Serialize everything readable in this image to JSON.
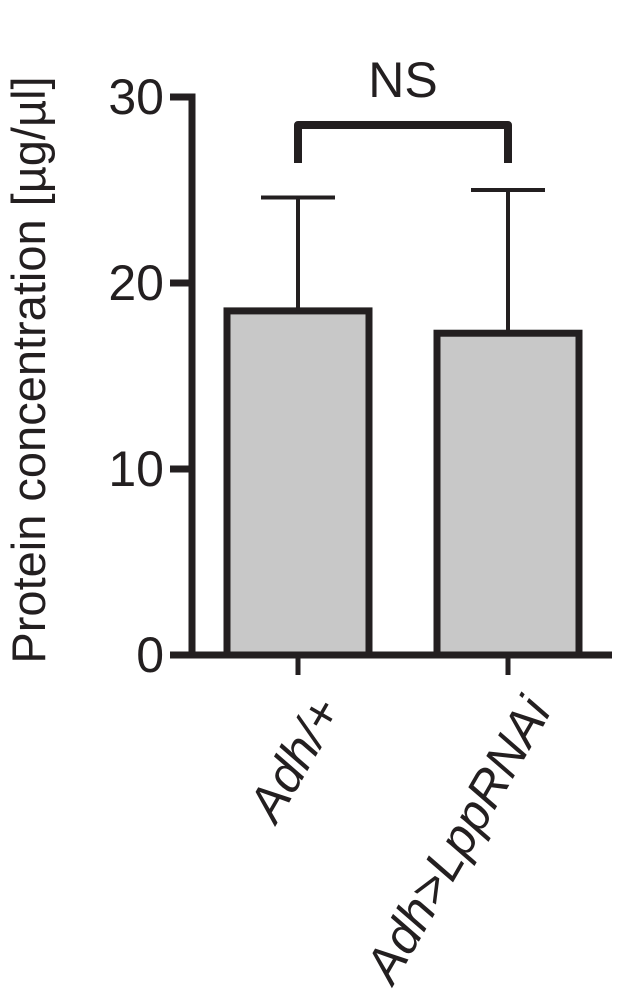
{
  "chart_data": {
    "type": "bar",
    "ylabel": "Protein concentration [µg/µl]",
    "xlabel": "",
    "categories": [
      "Adh/+",
      "Adh>LppRNAi"
    ],
    "values": [
      18.5,
      17.3
    ],
    "errors": [
      6.1,
      7.7
    ],
    "ylim": [
      0,
      30
    ],
    "yticks": [
      "0",
      "10",
      "20",
      "30"
    ],
    "significance": {
      "label": "NS",
      "between": [
        0,
        1
      ]
    },
    "grid": false,
    "colors": {
      "bar_fill": "#c8c8c8",
      "stroke": "#231f20"
    }
  }
}
